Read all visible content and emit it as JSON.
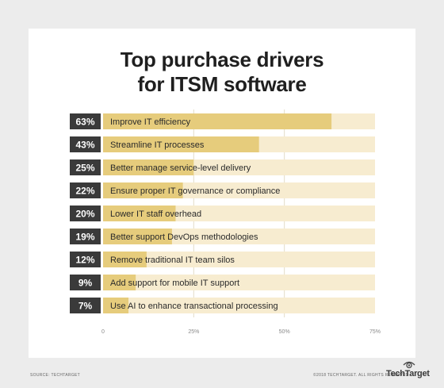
{
  "title_line1": "Top purchase drivers",
  "title_line2": "for ITSM software",
  "footer": {
    "source": "Source: TechTarget",
    "copyright": "©2018 TechTarget. All rights reserved.",
    "logo": "TechTarget"
  },
  "colors": {
    "bar": "#e6cc7c",
    "track": "#f7ecd0",
    "badge": "#3a3a3a",
    "text": "#2a2a2a"
  },
  "chart_data": {
    "type": "bar",
    "orientation": "horizontal",
    "categories": [
      "Improve IT efficiency",
      "Streamline IT processes",
      "Better manage service-level delivery",
      "Ensure proper IT governance or compliance",
      "Lower IT staff overhead",
      "Better support DevOps methodologies",
      "Remove traditional IT team silos",
      "Add support for mobile IT support",
      "Use AI to enhance transactional processing"
    ],
    "values": [
      63,
      43,
      25,
      22,
      20,
      19,
      12,
      9,
      7
    ],
    "value_labels": [
      "63%",
      "43%",
      "25%",
      "22%",
      "20%",
      "19%",
      "12%",
      "9%",
      "7%"
    ],
    "xlim": [
      0,
      75
    ],
    "ticks": [
      0,
      25,
      50,
      75
    ],
    "tick_labels": [
      "0",
      "25%",
      "50%",
      "75%"
    ],
    "grid": true
  }
}
